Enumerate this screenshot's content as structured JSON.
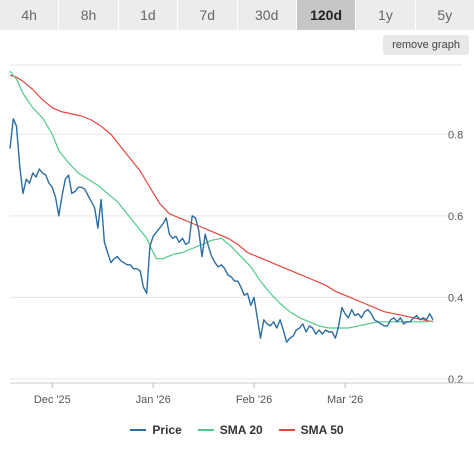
{
  "tabs": [
    {
      "label": "4h",
      "active": false
    },
    {
      "label": "8h",
      "active": false
    },
    {
      "label": "1d",
      "active": false
    },
    {
      "label": "7d",
      "active": false
    },
    {
      "label": "30d",
      "active": false
    },
    {
      "label": "120d",
      "active": true
    },
    {
      "label": "1y",
      "active": false
    },
    {
      "label": "5y",
      "active": false
    }
  ],
  "remove_graph_label": "remove graph",
  "chart_data": {
    "type": "line",
    "x_start": "2025-11-18",
    "x_end": "2026-03-28",
    "x_ticks": [
      {
        "date": "2025-12-01",
        "label": "Dec '25"
      },
      {
        "date": "2026-01-01",
        "label": "Jan '26"
      },
      {
        "date": "2026-02-01",
        "label": "Feb '26"
      },
      {
        "date": "2026-03-01",
        "label": "Mar '26"
      }
    ],
    "y_ticks": [
      0.2,
      0.4,
      0.6,
      0.8
    ],
    "ylim": [
      0.19,
      0.97
    ],
    "grid": true,
    "legend_position": "bottom",
    "series": [
      {
        "name": "Price",
        "color": "#2b6ca3",
        "points": [
          [
            "2025-11-18",
            0.765
          ],
          [
            "2025-11-19",
            0.838
          ],
          [
            "2025-11-20",
            0.82
          ],
          [
            "2025-11-21",
            0.72
          ],
          [
            "2025-11-22",
            0.655
          ],
          [
            "2025-11-23",
            0.69
          ],
          [
            "2025-11-24",
            0.68
          ],
          [
            "2025-11-25",
            0.705
          ],
          [
            "2025-11-26",
            0.695
          ],
          [
            "2025-11-27",
            0.715
          ],
          [
            "2025-11-28",
            0.705
          ],
          [
            "2025-11-29",
            0.7
          ],
          [
            "2025-11-30",
            0.68
          ],
          [
            "2025-12-01",
            0.67
          ],
          [
            "2025-12-02",
            0.645
          ],
          [
            "2025-12-03",
            0.6
          ],
          [
            "2025-12-04",
            0.65
          ],
          [
            "2025-12-05",
            0.69
          ],
          [
            "2025-12-06",
            0.7
          ],
          [
            "2025-12-07",
            0.655
          ],
          [
            "2025-12-08",
            0.66
          ],
          [
            "2025-12-09",
            0.67
          ],
          [
            "2025-12-10",
            0.67
          ],
          [
            "2025-12-11",
            0.665
          ],
          [
            "2025-12-12",
            0.65
          ],
          [
            "2025-12-13",
            0.635
          ],
          [
            "2025-12-14",
            0.62
          ],
          [
            "2025-12-15",
            0.57
          ],
          [
            "2025-12-16",
            0.64
          ],
          [
            "2025-12-17",
            0.535
          ],
          [
            "2025-12-18",
            0.51
          ],
          [
            "2025-12-19",
            0.485
          ],
          [
            "2025-12-20",
            0.495
          ],
          [
            "2025-12-21",
            0.5
          ],
          [
            "2025-12-22",
            0.49
          ],
          [
            "2025-12-23",
            0.485
          ],
          [
            "2025-12-24",
            0.48
          ],
          [
            "2025-12-25",
            0.48
          ],
          [
            "2025-12-26",
            0.47
          ],
          [
            "2025-12-27",
            0.47
          ],
          [
            "2025-12-28",
            0.465
          ],
          [
            "2025-12-29",
            0.425
          ],
          [
            "2025-12-30",
            0.41
          ],
          [
            "2025-12-31",
            0.525
          ],
          [
            "2026-01-01",
            0.55
          ],
          [
            "2026-01-02",
            0.56
          ],
          [
            "2026-01-03",
            0.57
          ],
          [
            "2026-01-04",
            0.58
          ],
          [
            "2026-01-05",
            0.595
          ],
          [
            "2026-01-06",
            0.555
          ],
          [
            "2026-01-07",
            0.545
          ],
          [
            "2026-01-08",
            0.55
          ],
          [
            "2026-01-09",
            0.535
          ],
          [
            "2026-01-10",
            0.545
          ],
          [
            "2026-01-11",
            0.53
          ],
          [
            "2026-01-12",
            0.535
          ],
          [
            "2026-01-13",
            0.6
          ],
          [
            "2026-01-14",
            0.595
          ],
          [
            "2026-01-15",
            0.565
          ],
          [
            "2026-01-16",
            0.5
          ],
          [
            "2026-01-17",
            0.555
          ],
          [
            "2026-01-18",
            0.525
          ],
          [
            "2026-01-19",
            0.5
          ],
          [
            "2026-01-20",
            0.485
          ],
          [
            "2026-01-21",
            0.475
          ],
          [
            "2026-01-22",
            0.48
          ],
          [
            "2026-01-23",
            0.47
          ],
          [
            "2026-01-24",
            0.455
          ],
          [
            "2026-01-25",
            0.45
          ],
          [
            "2026-01-26",
            0.44
          ],
          [
            "2026-01-27",
            0.44
          ],
          [
            "2026-01-28",
            0.425
          ],
          [
            "2026-01-29",
            0.405
          ],
          [
            "2026-01-30",
            0.41
          ],
          [
            "2026-01-31",
            0.38
          ],
          [
            "2026-02-01",
            0.4
          ],
          [
            "2026-02-02",
            0.35
          ],
          [
            "2026-02-03",
            0.3
          ],
          [
            "2026-02-04",
            0.345
          ],
          [
            "2026-02-05",
            0.335
          ],
          [
            "2026-02-06",
            0.33
          ],
          [
            "2026-02-07",
            0.34
          ],
          [
            "2026-02-08",
            0.325
          ],
          [
            "2026-02-09",
            0.345
          ],
          [
            "2026-02-10",
            0.32
          ],
          [
            "2026-02-11",
            0.29
          ],
          [
            "2026-02-12",
            0.3
          ],
          [
            "2026-02-13",
            0.305
          ],
          [
            "2026-02-14",
            0.32
          ],
          [
            "2026-02-15",
            0.325
          ],
          [
            "2026-02-16",
            0.335
          ],
          [
            "2026-02-17",
            0.315
          ],
          [
            "2026-02-18",
            0.33
          ],
          [
            "2026-02-19",
            0.325
          ],
          [
            "2026-02-20",
            0.31
          ],
          [
            "2026-02-21",
            0.32
          ],
          [
            "2026-02-22",
            0.31
          ],
          [
            "2026-02-23",
            0.32
          ],
          [
            "2026-02-24",
            0.315
          ],
          [
            "2026-02-25",
            0.315
          ],
          [
            "2026-02-26",
            0.3
          ],
          [
            "2026-02-27",
            0.33
          ],
          [
            "2026-02-28",
            0.375
          ],
          [
            "2026-03-01",
            0.36
          ],
          [
            "2026-03-02",
            0.35
          ],
          [
            "2026-03-03",
            0.37
          ],
          [
            "2026-03-04",
            0.355
          ],
          [
            "2026-03-05",
            0.36
          ],
          [
            "2026-03-06",
            0.35
          ],
          [
            "2026-03-07",
            0.365
          ],
          [
            "2026-03-08",
            0.37
          ],
          [
            "2026-03-09",
            0.36
          ],
          [
            "2026-03-10",
            0.345
          ],
          [
            "2026-03-11",
            0.34
          ],
          [
            "2026-03-12",
            0.335
          ],
          [
            "2026-03-13",
            0.33
          ],
          [
            "2026-03-14",
            0.33
          ],
          [
            "2026-03-15",
            0.345
          ],
          [
            "2026-03-16",
            0.35
          ],
          [
            "2026-03-17",
            0.34
          ],
          [
            "2026-03-18",
            0.35
          ],
          [
            "2026-03-19",
            0.335
          ],
          [
            "2026-03-20",
            0.34
          ],
          [
            "2026-03-21",
            0.34
          ],
          [
            "2026-03-22",
            0.35
          ],
          [
            "2026-03-23",
            0.355
          ],
          [
            "2026-03-24",
            0.345
          ],
          [
            "2026-03-25",
            0.35
          ],
          [
            "2026-03-26",
            0.345
          ],
          [
            "2026-03-27",
            0.36
          ],
          [
            "2026-03-28",
            0.345
          ]
        ]
      },
      {
        "name": "SMA 20",
        "color": "#52c98a",
        "points": [
          [
            "2025-11-18",
            0.955
          ],
          [
            "2025-11-20",
            0.935
          ],
          [
            "2025-11-22",
            0.9
          ],
          [
            "2025-11-25",
            0.865
          ],
          [
            "2025-11-28",
            0.84
          ],
          [
            "2025-12-01",
            0.8
          ],
          [
            "2025-12-03",
            0.76
          ],
          [
            "2025-12-06",
            0.73
          ],
          [
            "2025-12-09",
            0.705
          ],
          [
            "2025-12-12",
            0.69
          ],
          [
            "2025-12-15",
            0.675
          ],
          [
            "2025-12-18",
            0.655
          ],
          [
            "2025-12-21",
            0.635
          ],
          [
            "2025-12-24",
            0.605
          ],
          [
            "2025-12-27",
            0.575
          ],
          [
            "2025-12-30",
            0.545
          ],
          [
            "2026-01-01",
            0.51
          ],
          [
            "2026-01-02",
            0.495
          ],
          [
            "2026-01-04",
            0.495
          ],
          [
            "2026-01-07",
            0.505
          ],
          [
            "2026-01-10",
            0.51
          ],
          [
            "2026-01-13",
            0.52
          ],
          [
            "2026-01-16",
            0.53
          ],
          [
            "2026-01-19",
            0.54
          ],
          [
            "2026-01-22",
            0.545
          ],
          [
            "2026-01-25",
            0.525
          ],
          [
            "2026-01-28",
            0.5
          ],
          [
            "2026-01-31",
            0.475
          ],
          [
            "2026-02-03",
            0.44
          ],
          [
            "2026-02-06",
            0.41
          ],
          [
            "2026-02-09",
            0.385
          ],
          [
            "2026-02-12",
            0.365
          ],
          [
            "2026-02-15",
            0.35
          ],
          [
            "2026-02-18",
            0.34
          ],
          [
            "2026-02-21",
            0.33
          ],
          [
            "2026-02-24",
            0.325
          ],
          [
            "2026-02-27",
            0.325
          ],
          [
            "2026-03-02",
            0.325
          ],
          [
            "2026-03-05",
            0.33
          ],
          [
            "2026-03-08",
            0.335
          ],
          [
            "2026-03-11",
            0.34
          ],
          [
            "2026-03-14",
            0.34
          ],
          [
            "2026-03-17",
            0.34
          ],
          [
            "2026-03-20",
            0.34
          ],
          [
            "2026-03-23",
            0.34
          ],
          [
            "2026-03-26",
            0.34
          ],
          [
            "2026-03-28",
            0.342
          ]
        ]
      },
      {
        "name": "SMA 50",
        "color": "#e0473e",
        "points": [
          [
            "2025-11-18",
            0.945
          ],
          [
            "2025-11-20",
            0.94
          ],
          [
            "2025-11-22",
            0.93
          ],
          [
            "2025-11-25",
            0.91
          ],
          [
            "2025-11-28",
            0.885
          ],
          [
            "2025-12-01",
            0.865
          ],
          [
            "2025-12-04",
            0.855
          ],
          [
            "2025-12-07",
            0.85
          ],
          [
            "2025-12-10",
            0.845
          ],
          [
            "2025-12-13",
            0.835
          ],
          [
            "2025-12-16",
            0.82
          ],
          [
            "2025-12-19",
            0.8
          ],
          [
            "2025-12-22",
            0.77
          ],
          [
            "2025-12-25",
            0.74
          ],
          [
            "2025-12-28",
            0.71
          ],
          [
            "2025-12-31",
            0.67
          ],
          [
            "2026-01-03",
            0.63
          ],
          [
            "2026-01-06",
            0.605
          ],
          [
            "2026-01-09",
            0.595
          ],
          [
            "2026-01-12",
            0.585
          ],
          [
            "2026-01-15",
            0.575
          ],
          [
            "2026-01-18",
            0.565
          ],
          [
            "2026-01-21",
            0.555
          ],
          [
            "2026-01-24",
            0.545
          ],
          [
            "2026-01-27",
            0.53
          ],
          [
            "2026-01-30",
            0.51
          ],
          [
            "2026-02-02",
            0.5
          ],
          [
            "2026-02-05",
            0.49
          ],
          [
            "2026-02-08",
            0.48
          ],
          [
            "2026-02-11",
            0.47
          ],
          [
            "2026-02-14",
            0.46
          ],
          [
            "2026-02-17",
            0.45
          ],
          [
            "2026-02-20",
            0.44
          ],
          [
            "2026-02-23",
            0.43
          ],
          [
            "2026-02-26",
            0.415
          ],
          [
            "2026-03-01",
            0.405
          ],
          [
            "2026-03-04",
            0.395
          ],
          [
            "2026-03-07",
            0.385
          ],
          [
            "2026-03-10",
            0.375
          ],
          [
            "2026-03-13",
            0.365
          ],
          [
            "2026-03-16",
            0.36
          ],
          [
            "2026-03-19",
            0.355
          ],
          [
            "2026-03-22",
            0.35
          ],
          [
            "2026-03-25",
            0.345
          ],
          [
            "2026-03-28",
            0.34
          ]
        ]
      }
    ]
  }
}
